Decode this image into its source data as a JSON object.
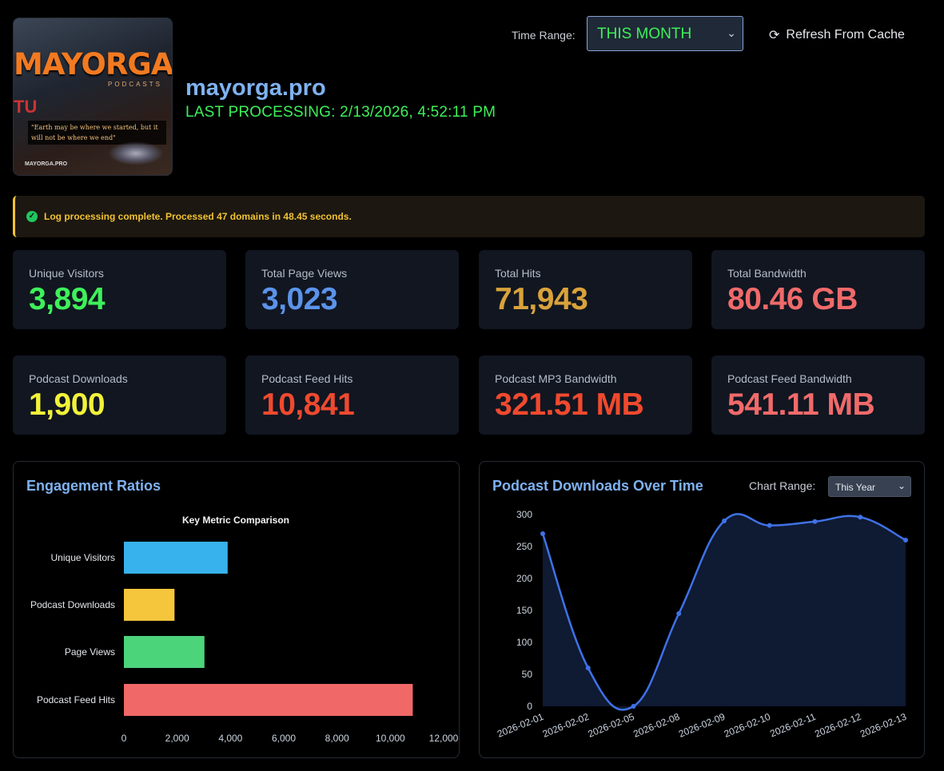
{
  "logo": {
    "title": "MAYORGA",
    "subtitle": "PODCASTS",
    "side_text": "TU",
    "quote": "\"Earth may be where we started, but it will not be where we end\"",
    "footer": "MAYORGA.PRO"
  },
  "header": {
    "site_name": "mayorga.pro",
    "last_processing": "LAST PROCESSING: 2/13/2026, 4:52:11 PM",
    "time_range_label": "Time Range:",
    "time_range_value": "THIS MONTH",
    "refresh_label": "Refresh From Cache"
  },
  "alert": {
    "message": "Log processing complete. Processed 47 domains in 48.45 seconds."
  },
  "stats": [
    {
      "label": "Unique Visitors",
      "value": "3,894",
      "color": "#3ef05a"
    },
    {
      "label": "Total Page Views",
      "value": "3,023",
      "color": "#5b93ea"
    },
    {
      "label": "Total Hits",
      "value": "71,943",
      "color": "#d9a23a"
    },
    {
      "label": "Total Bandwidth",
      "value": "80.46 GB",
      "color": "#f06a6a"
    },
    {
      "label": "Podcast Downloads",
      "value": "1,900",
      "color": "#f2f23a"
    },
    {
      "label": "Podcast Feed Hits",
      "value": "10,841",
      "color": "#f0492e"
    },
    {
      "label": "Podcast MP3 Bandwidth",
      "value": "321.51 MB",
      "color": "#f0492e"
    },
    {
      "label": "Podcast Feed Bandwidth",
      "value": "541.11 MB",
      "color": "#f06a6a"
    }
  ],
  "engagement": {
    "panel_title": "Engagement Ratios"
  },
  "downloads": {
    "panel_title": "Podcast Downloads Over Time",
    "chart_range_label": "Chart Range:",
    "chart_range_value": "This Year"
  },
  "chart_data": [
    {
      "type": "bar",
      "orientation": "horizontal",
      "title": "Key Metric Comparison",
      "categories": [
        "Unique Visitors",
        "Podcast Downloads",
        "Page Views",
        "Podcast Feed Hits"
      ],
      "values": [
        3894,
        1900,
        3023,
        10841
      ],
      "colors": [
        "#38b2ec",
        "#f5c63c",
        "#4cd47b",
        "#f06868"
      ],
      "xlim": [
        0,
        12000
      ],
      "xticks": [
        0,
        2000,
        4000,
        6000,
        8000,
        10000,
        12000
      ],
      "xtick_labels": [
        "0",
        "2,000",
        "4,000",
        "6,000",
        "8,000",
        "10,000",
        "12,000"
      ],
      "grid": false,
      "legend": "none"
    },
    {
      "type": "area",
      "x": [
        "2026-02-01",
        "2026-02-02",
        "2026-02-05",
        "2026-02-08",
        "2026-02-09",
        "2026-02-10",
        "2026-02-11",
        "2026-02-12",
        "2026-02-13"
      ],
      "values": [
        270,
        60,
        0,
        145,
        290,
        283,
        289,
        296,
        260
      ],
      "ylim": [
        0,
        300
      ],
      "yticks": [
        0,
        50,
        100,
        150,
        200,
        250,
        300
      ],
      "line_color": "#3f72e6",
      "fill_color": "#0f1a33",
      "grid": false,
      "legend": "none"
    }
  ]
}
